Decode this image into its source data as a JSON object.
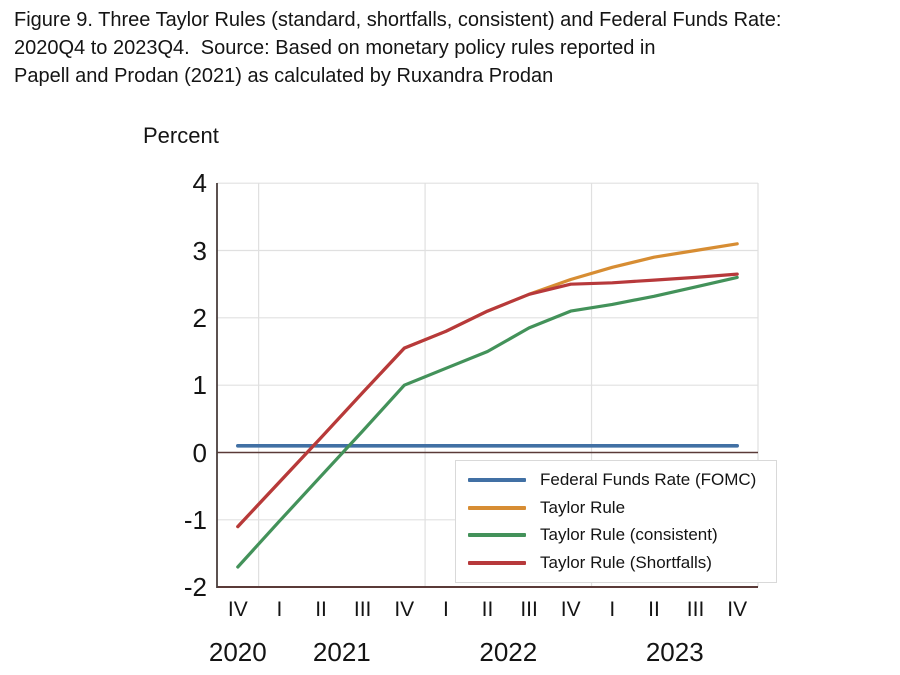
{
  "title": {
    "line1": "Figure 9. Three Taylor Rules (standard, shortfalls, consistent) and Federal Funds Rate:",
    "line2": "2020Q4 to 2023Q4.  Source: Based on monetary policy rules reported in",
    "line3": "Papell and Prodan (2021) as calculated by Ruxandra Prodan"
  },
  "chart_data": {
    "type": "line",
    "title": "Three Taylor Rules (standard, shortfalls, consistent) and Federal Funds Rate: 2020Q4 to 2023Q4",
    "ylabel": "Percent",
    "xlabel": "",
    "ylim": [
      -2,
      4
    ],
    "yticks": [
      4,
      3,
      2,
      1,
      0,
      -1,
      -2
    ],
    "grid": true,
    "legend_position": "inside-bottom-right",
    "categories": [
      "2020Q4",
      "2021Q1",
      "2021Q2",
      "2021Q3",
      "2021Q4",
      "2022Q1",
      "2022Q2",
      "2022Q3",
      "2022Q4",
      "2023Q1",
      "2023Q2",
      "2023Q3",
      "2023Q4"
    ],
    "x_quarter_labels": [
      "IV",
      "I",
      "II",
      "III",
      "IV",
      "I",
      "II",
      "III",
      "IV",
      "I",
      "II",
      "III",
      "IV"
    ],
    "year_groups": [
      {
        "label": "2020",
        "start": 0,
        "end": 0
      },
      {
        "label": "2021",
        "start": 1,
        "end": 4
      },
      {
        "label": "2022",
        "start": 5,
        "end": 8
      },
      {
        "label": "2023",
        "start": 9,
        "end": 12
      }
    ],
    "series": [
      {
        "name": "Federal Funds Rate (FOMC)",
        "color": "#4170a4",
        "line_width": 3.6,
        "values": [
          0.1,
          0.1,
          0.1,
          0.1,
          0.1,
          0.1,
          0.1,
          0.1,
          0.1,
          0.1,
          0.1,
          0.1,
          0.1
        ]
      },
      {
        "name": "Taylor Rule",
        "color": "#d78d33",
        "line_width": 3.2,
        "values": [
          -1.1,
          -0.44,
          0.22,
          0.89,
          1.55,
          1.8,
          2.1,
          2.35,
          2.57,
          2.75,
          2.9,
          3.0,
          3.1
        ]
      },
      {
        "name": "Taylor Rule (consistent)",
        "color": "#43925a",
        "line_width": 3.2,
        "values": [
          -1.7,
          -1.02,
          -0.35,
          0.32,
          1.0,
          1.25,
          1.5,
          1.85,
          2.1,
          2.2,
          2.32,
          2.46,
          2.6
        ]
      },
      {
        "name": "Taylor Rule (Shortfalls)",
        "color": "#b7393b",
        "line_width": 3.2,
        "values": [
          -1.1,
          -0.44,
          0.22,
          0.89,
          1.55,
          1.8,
          2.1,
          2.35,
          2.5,
          2.52,
          2.56,
          2.6,
          2.65
        ]
      }
    ]
  },
  "colors": {
    "background": "#ffffff",
    "text": "#141414",
    "gridline": "#e0e0e0",
    "zero_line": "#5a3a38",
    "axis_line": "#4a3e3c",
    "legend_border": "#d9d9d9",
    "legend_bg": "#ffffff"
  }
}
